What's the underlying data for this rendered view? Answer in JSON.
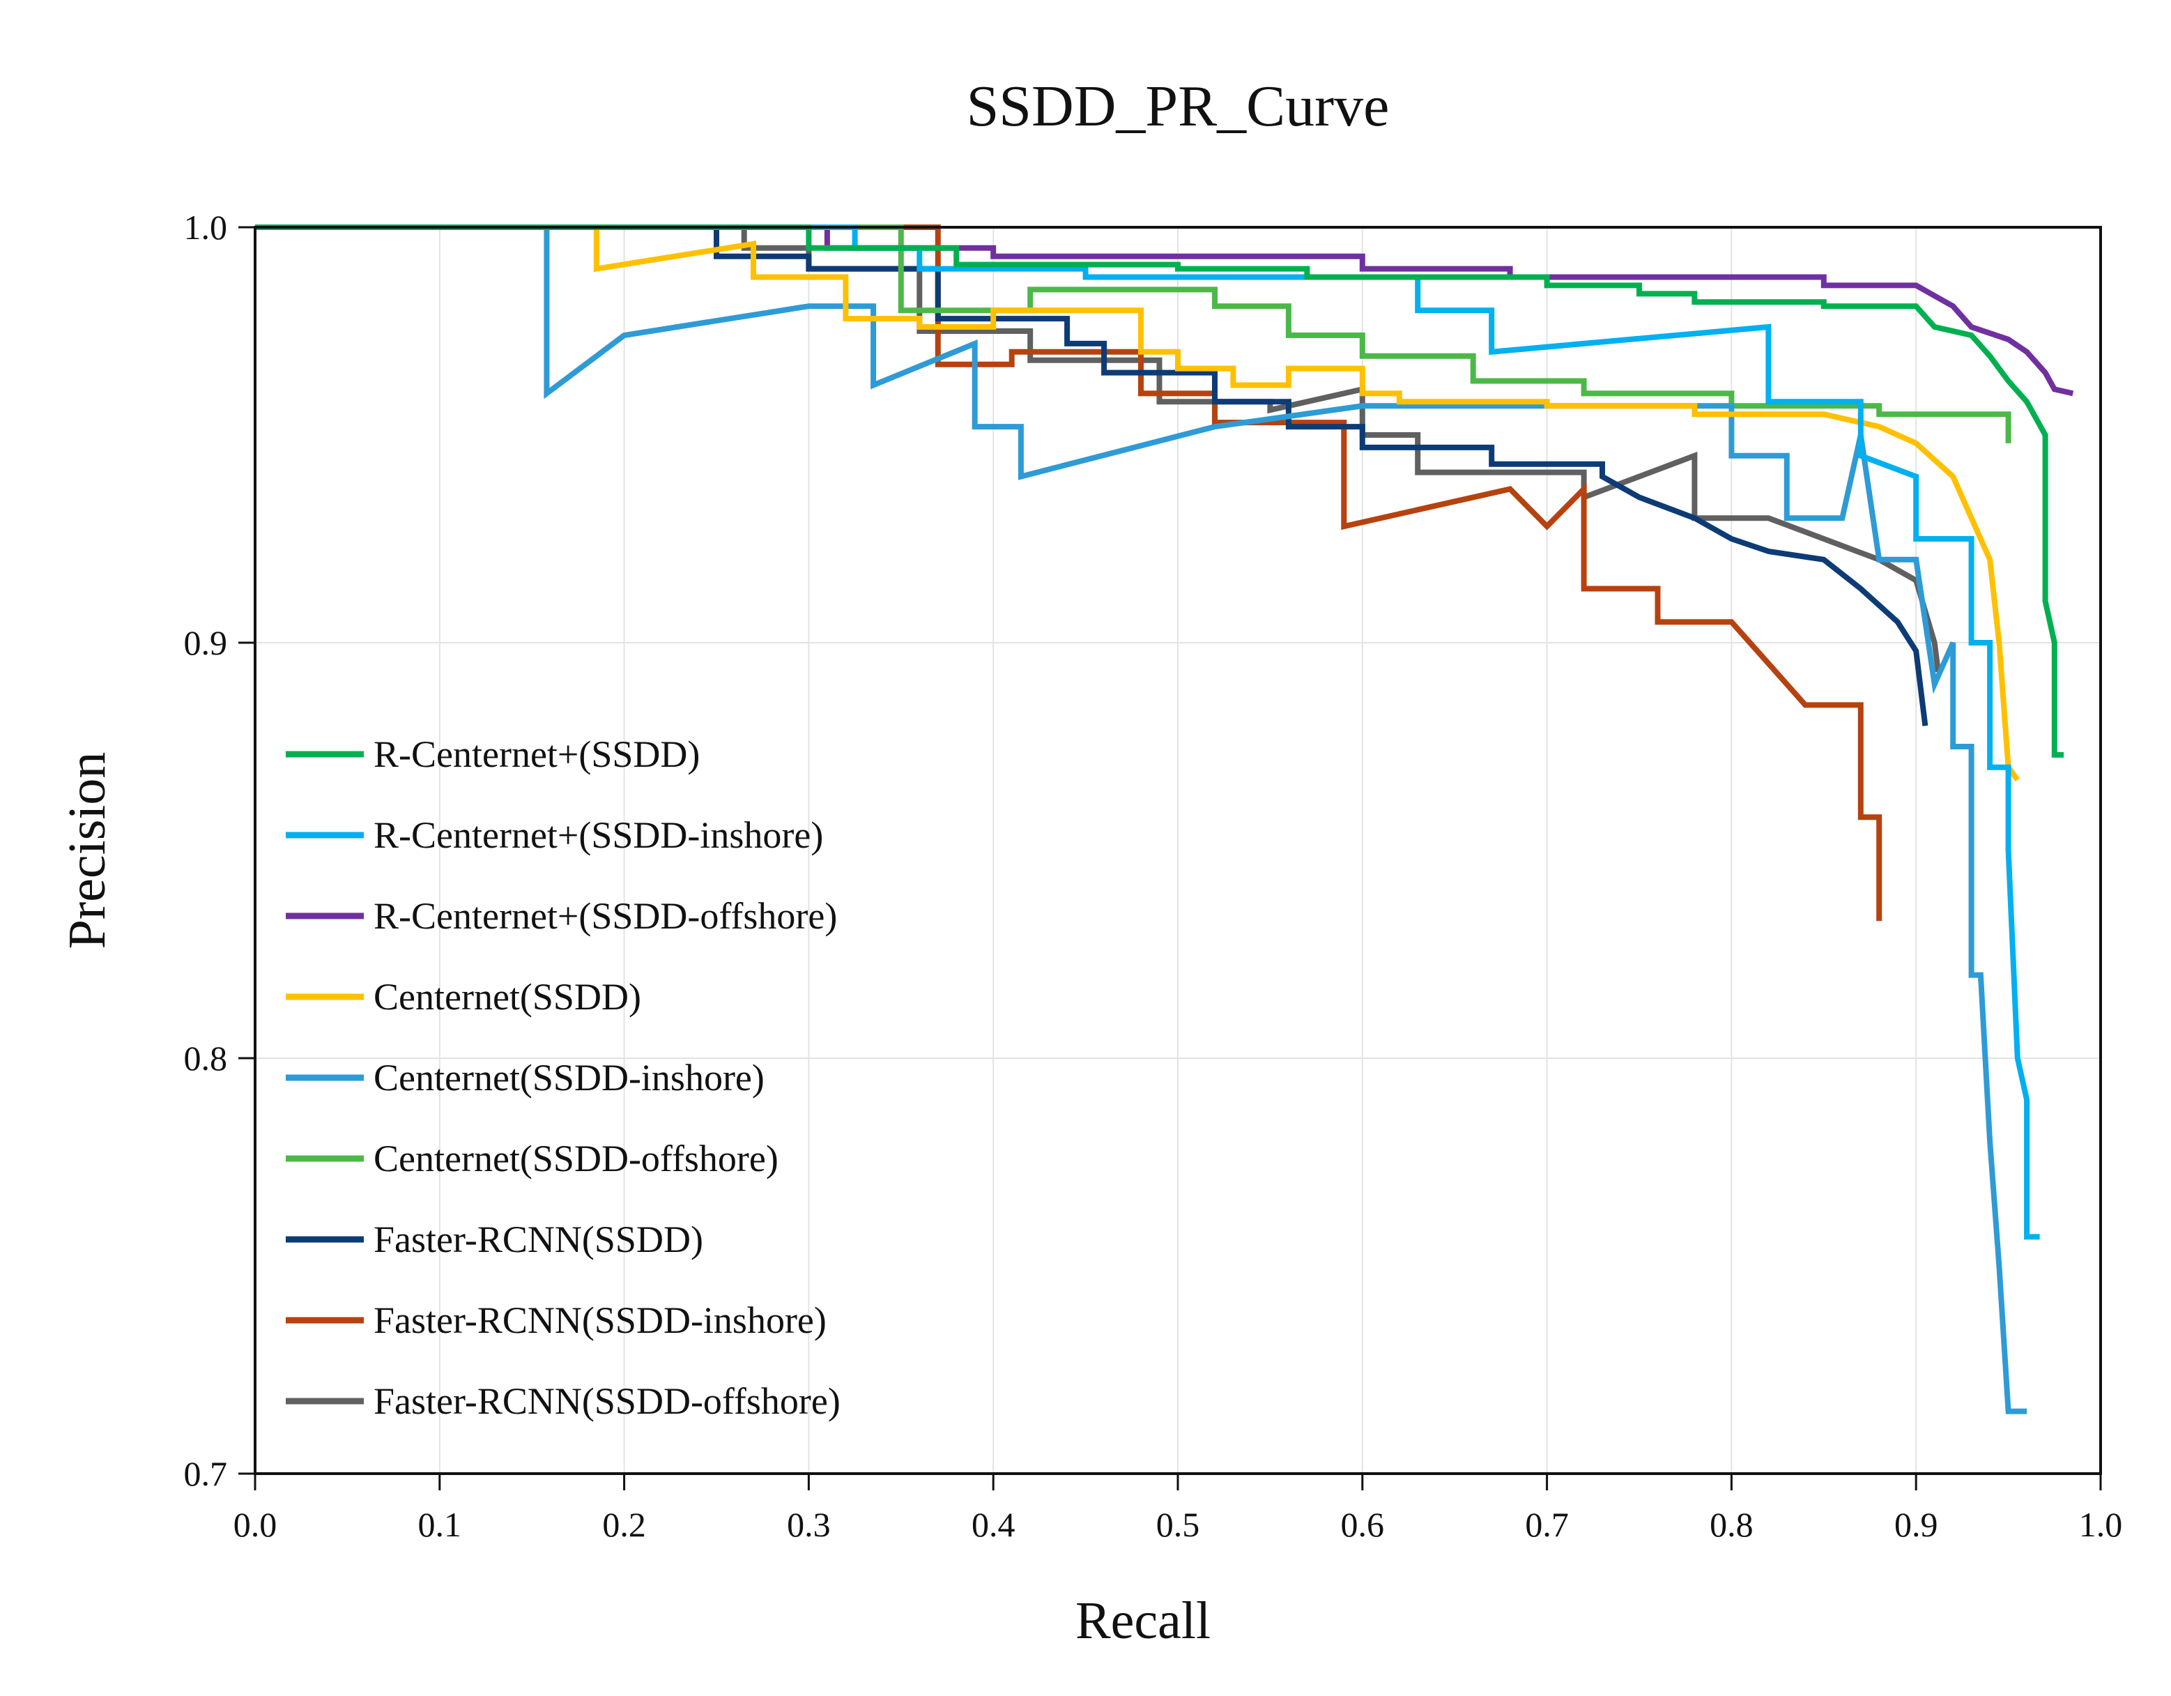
{
  "chart_data": {
    "type": "line",
    "title": "SSDD_PR_Curve",
    "xlabel": "Recall",
    "ylabel": "Precision",
    "xlim": [
      0.0,
      1.0
    ],
    "ylim": [
      0.7,
      1.0
    ],
    "xticks": [
      "0.0",
      "0.1",
      "0.2",
      "0.3",
      "0.4",
      "0.5",
      "0.6",
      "0.7",
      "0.8",
      "0.9",
      "1.0"
    ],
    "yticks": [
      "0.7",
      "0.8",
      "0.9",
      "1.0"
    ],
    "grid": true,
    "legend_position": "center-left",
    "series": [
      {
        "name": "R-Centernet+(SSDD)",
        "color": "#00b050",
        "points": [
          [
            0.0,
            1.0
          ],
          [
            0.3,
            1.0
          ],
          [
            0.3,
            0.995
          ],
          [
            0.38,
            0.995
          ],
          [
            0.38,
            0.991
          ],
          [
            0.5,
            0.991
          ],
          [
            0.5,
            0.99
          ],
          [
            0.57,
            0.99
          ],
          [
            0.57,
            0.988
          ],
          [
            0.7,
            0.988
          ],
          [
            0.7,
            0.986
          ],
          [
            0.75,
            0.986
          ],
          [
            0.75,
            0.984
          ],
          [
            0.78,
            0.984
          ],
          [
            0.78,
            0.982
          ],
          [
            0.85,
            0.982
          ],
          [
            0.85,
            0.981
          ],
          [
            0.9,
            0.981
          ],
          [
            0.91,
            0.976
          ],
          [
            0.93,
            0.974
          ],
          [
            0.94,
            0.969
          ],
          [
            0.95,
            0.963
          ],
          [
            0.96,
            0.958
          ],
          [
            0.97,
            0.95
          ],
          [
            0.97,
            0.91
          ],
          [
            0.975,
            0.9
          ],
          [
            0.975,
            0.873
          ],
          [
            0.98,
            0.873
          ]
        ]
      },
      {
        "name": "R-Centernet+(SSDD-inshore)",
        "color": "#00b0f0",
        "points": [
          [
            0.0,
            1.0
          ],
          [
            0.325,
            1.0
          ],
          [
            0.325,
            0.995
          ],
          [
            0.36,
            0.995
          ],
          [
            0.36,
            0.99
          ],
          [
            0.45,
            0.99
          ],
          [
            0.45,
            0.988
          ],
          [
            0.63,
            0.988
          ],
          [
            0.63,
            0.98
          ],
          [
            0.67,
            0.98
          ],
          [
            0.67,
            0.97
          ],
          [
            0.82,
            0.976
          ],
          [
            0.82,
            0.958
          ],
          [
            0.87,
            0.958
          ],
          [
            0.87,
            0.945
          ],
          [
            0.9,
            0.94
          ],
          [
            0.9,
            0.925
          ],
          [
            0.93,
            0.925
          ],
          [
            0.93,
            0.9
          ],
          [
            0.94,
            0.9
          ],
          [
            0.94,
            0.87
          ],
          [
            0.95,
            0.87
          ],
          [
            0.95,
            0.85
          ],
          [
            0.955,
            0.8
          ],
          [
            0.96,
            0.79
          ],
          [
            0.96,
            0.757
          ],
          [
            0.967,
            0.757
          ]
        ]
      },
      {
        "name": "R-Centernet+(SSDD-offshore)",
        "color": "#7030a0",
        "points": [
          [
            0.0,
            1.0
          ],
          [
            0.31,
            1.0
          ],
          [
            0.31,
            0.995
          ],
          [
            0.4,
            0.995
          ],
          [
            0.4,
            0.993
          ],
          [
            0.6,
            0.993
          ],
          [
            0.6,
            0.99
          ],
          [
            0.68,
            0.99
          ],
          [
            0.68,
            0.988
          ],
          [
            0.85,
            0.988
          ],
          [
            0.85,
            0.986
          ],
          [
            0.9,
            0.986
          ],
          [
            0.92,
            0.981
          ],
          [
            0.93,
            0.976
          ],
          [
            0.95,
            0.973
          ],
          [
            0.96,
            0.97
          ],
          [
            0.97,
            0.965
          ],
          [
            0.975,
            0.961
          ],
          [
            0.985,
            0.96
          ]
        ]
      },
      {
        "name": "Centernet(SSDD)",
        "color": "#ffc000",
        "points": [
          [
            0.0,
            1.0
          ],
          [
            0.185,
            1.0
          ],
          [
            0.185,
            0.99
          ],
          [
            0.27,
            0.996
          ],
          [
            0.27,
            0.988
          ],
          [
            0.32,
            0.988
          ],
          [
            0.32,
            0.978
          ],
          [
            0.36,
            0.978
          ],
          [
            0.36,
            0.976
          ],
          [
            0.4,
            0.976
          ],
          [
            0.4,
            0.98
          ],
          [
            0.48,
            0.98
          ],
          [
            0.48,
            0.97
          ],
          [
            0.5,
            0.97
          ],
          [
            0.5,
            0.966
          ],
          [
            0.53,
            0.966
          ],
          [
            0.53,
            0.962
          ],
          [
            0.56,
            0.962
          ],
          [
            0.56,
            0.966
          ],
          [
            0.6,
            0.966
          ],
          [
            0.6,
            0.96
          ],
          [
            0.62,
            0.96
          ],
          [
            0.62,
            0.958
          ],
          [
            0.7,
            0.958
          ],
          [
            0.7,
            0.957
          ],
          [
            0.78,
            0.957
          ],
          [
            0.78,
            0.955
          ],
          [
            0.85,
            0.955
          ],
          [
            0.88,
            0.952
          ],
          [
            0.9,
            0.948
          ],
          [
            0.92,
            0.94
          ],
          [
            0.94,
            0.92
          ],
          [
            0.945,
            0.9
          ],
          [
            0.95,
            0.87
          ],
          [
            0.955,
            0.867
          ]
        ]
      },
      {
        "name": "Centernet(SSDD-inshore)",
        "color": "#2e9bd6",
        "points": [
          [
            0.0,
            1.0
          ],
          [
            0.158,
            1.0
          ],
          [
            0.158,
            0.96
          ],
          [
            0.2,
            0.974
          ],
          [
            0.3,
            0.981
          ],
          [
            0.335,
            0.981
          ],
          [
            0.335,
            0.962
          ],
          [
            0.39,
            0.972
          ],
          [
            0.39,
            0.952
          ],
          [
            0.415,
            0.952
          ],
          [
            0.415,
            0.94
          ],
          [
            0.52,
            0.952
          ],
          [
            0.6,
            0.957
          ],
          [
            0.8,
            0.957
          ],
          [
            0.8,
            0.945
          ],
          [
            0.83,
            0.945
          ],
          [
            0.83,
            0.93
          ],
          [
            0.86,
            0.93
          ],
          [
            0.87,
            0.95
          ],
          [
            0.88,
            0.92
          ],
          [
            0.9,
            0.92
          ],
          [
            0.91,
            0.89
          ],
          [
            0.92,
            0.9
          ],
          [
            0.92,
            0.875
          ],
          [
            0.93,
            0.875
          ],
          [
            0.93,
            0.82
          ],
          [
            0.935,
            0.82
          ],
          [
            0.94,
            0.78
          ],
          [
            0.945,
            0.75
          ],
          [
            0.95,
            0.715
          ],
          [
            0.96,
            0.715
          ]
        ]
      },
      {
        "name": "Centernet(SSDD-offshore)",
        "color": "#4cb848",
        "points": [
          [
            0.0,
            1.0
          ],
          [
            0.35,
            1.0
          ],
          [
            0.35,
            0.98
          ],
          [
            0.42,
            0.98
          ],
          [
            0.42,
            0.985
          ],
          [
            0.52,
            0.985
          ],
          [
            0.52,
            0.981
          ],
          [
            0.56,
            0.981
          ],
          [
            0.56,
            0.974
          ],
          [
            0.6,
            0.974
          ],
          [
            0.6,
            0.969
          ],
          [
            0.66,
            0.969
          ],
          [
            0.66,
            0.963
          ],
          [
            0.72,
            0.963
          ],
          [
            0.72,
            0.96
          ],
          [
            0.8,
            0.96
          ],
          [
            0.8,
            0.957
          ],
          [
            0.88,
            0.957
          ],
          [
            0.88,
            0.955
          ],
          [
            0.95,
            0.955
          ],
          [
            0.95,
            0.948
          ]
        ]
      },
      {
        "name": "Faster-RCNN(SSDD)",
        "color": "#0d3b76",
        "points": [
          [
            0.0,
            1.0
          ],
          [
            0.25,
            1.0
          ],
          [
            0.25,
            0.993
          ],
          [
            0.3,
            0.993
          ],
          [
            0.3,
            0.99
          ],
          [
            0.37,
            0.99
          ],
          [
            0.37,
            0.978
          ],
          [
            0.44,
            0.978
          ],
          [
            0.44,
            0.972
          ],
          [
            0.46,
            0.972
          ],
          [
            0.46,
            0.965
          ],
          [
            0.52,
            0.965
          ],
          [
            0.52,
            0.958
          ],
          [
            0.56,
            0.958
          ],
          [
            0.56,
            0.952
          ],
          [
            0.6,
            0.952
          ],
          [
            0.6,
            0.947
          ],
          [
            0.67,
            0.947
          ],
          [
            0.67,
            0.943
          ],
          [
            0.73,
            0.943
          ],
          [
            0.73,
            0.94
          ],
          [
            0.75,
            0.935
          ],
          [
            0.78,
            0.93
          ],
          [
            0.8,
            0.925
          ],
          [
            0.82,
            0.922
          ],
          [
            0.85,
            0.92
          ],
          [
            0.87,
            0.913
          ],
          [
            0.89,
            0.905
          ],
          [
            0.9,
            0.898
          ],
          [
            0.905,
            0.88
          ]
        ]
      },
      {
        "name": "Faster-RCNN(SSDD-inshore)",
        "color": "#b6420f",
        "points": [
          [
            0.0,
            1.0
          ],
          [
            0.37,
            1.0
          ],
          [
            0.37,
            0.967
          ],
          [
            0.41,
            0.967
          ],
          [
            0.41,
            0.97
          ],
          [
            0.48,
            0.97
          ],
          [
            0.48,
            0.96
          ],
          [
            0.52,
            0.96
          ],
          [
            0.52,
            0.953
          ],
          [
            0.59,
            0.953
          ],
          [
            0.59,
            0.928
          ],
          [
            0.68,
            0.937
          ],
          [
            0.7,
            0.928
          ],
          [
            0.72,
            0.937
          ],
          [
            0.72,
            0.913
          ],
          [
            0.76,
            0.913
          ],
          [
            0.76,
            0.905
          ],
          [
            0.8,
            0.905
          ],
          [
            0.82,
            0.895
          ],
          [
            0.84,
            0.885
          ],
          [
            0.86,
            0.885
          ],
          [
            0.87,
            0.885
          ],
          [
            0.87,
            0.858
          ],
          [
            0.88,
            0.858
          ],
          [
            0.88,
            0.833
          ]
        ]
      },
      {
        "name": "Faster-RCNN(SSDD-offshore)",
        "color": "#606060",
        "points": [
          [
            0.0,
            1.0
          ],
          [
            0.265,
            1.0
          ],
          [
            0.265,
            0.995
          ],
          [
            0.3,
            0.995
          ],
          [
            0.3,
            0.99
          ],
          [
            0.36,
            0.99
          ],
          [
            0.36,
            0.975
          ],
          [
            0.42,
            0.975
          ],
          [
            0.42,
            0.968
          ],
          [
            0.49,
            0.968
          ],
          [
            0.49,
            0.958
          ],
          [
            0.55,
            0.958
          ],
          [
            0.55,
            0.956
          ],
          [
            0.6,
            0.961
          ],
          [
            0.6,
            0.95
          ],
          [
            0.63,
            0.95
          ],
          [
            0.63,
            0.941
          ],
          [
            0.72,
            0.941
          ],
          [
            0.72,
            0.935
          ],
          [
            0.78,
            0.945
          ],
          [
            0.78,
            0.93
          ],
          [
            0.82,
            0.93
          ],
          [
            0.85,
            0.925
          ],
          [
            0.88,
            0.92
          ],
          [
            0.9,
            0.915
          ],
          [
            0.91,
            0.9
          ],
          [
            0.912,
            0.893
          ]
        ]
      }
    ]
  }
}
